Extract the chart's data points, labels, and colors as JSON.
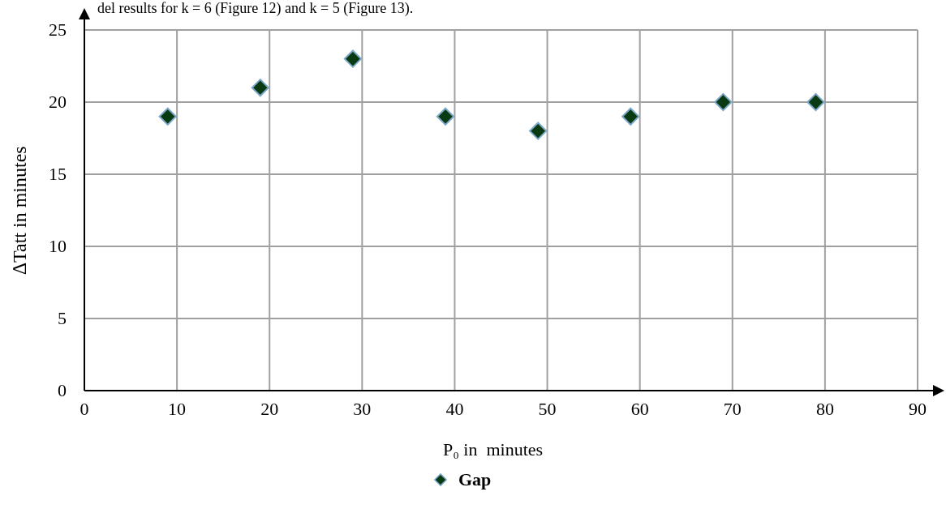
{
  "chart_data": {
    "type": "scatter",
    "xlabel": "P₀ in  minutes",
    "ylabel": "∆Tatt in minutes",
    "annotations": [
      "del results for k = 6 (Figure 12) and k = 5 (Figure 13)."
    ],
    "x": [
      9,
      19,
      29,
      39,
      49,
      59,
      69,
      79
    ],
    "series": [
      {
        "name": "Gap",
        "color": "#0a3a12",
        "values": [
          19,
          21,
          23,
          19,
          18,
          19,
          20,
          20
        ]
      }
    ],
    "xlim": [
      0,
      90
    ],
    "xticks": [
      0,
      10,
      20,
      30,
      40,
      50,
      60,
      70,
      80,
      90
    ],
    "ylim": [
      0,
      25
    ],
    "yticks": [
      0,
      5,
      10,
      15,
      20,
      25
    ],
    "grid": true,
    "legend": "bottom",
    "marker": "diamond"
  }
}
